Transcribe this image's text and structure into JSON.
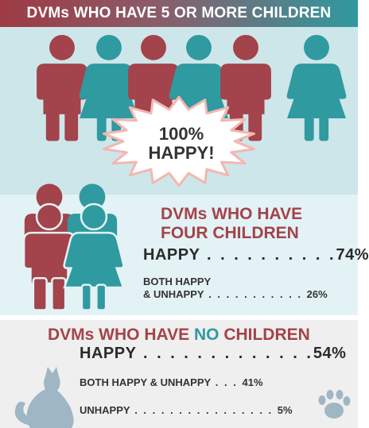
{
  "header": {
    "title": "DVMs WHO HAVE 5 OR MORE CHILDREN"
  },
  "section1": {
    "burst_line1": "100%",
    "burst_line2": "HAPPY!"
  },
  "section2": {
    "title_part1": "DVMs WHO HAVE",
    "title_part2": "FOUR CHILDREN",
    "happy_label": "HAPPY",
    "happy_value": "74%",
    "both_label_line1": "BOTH HAPPY",
    "both_label_line2": "& UNHAPPY",
    "both_value": "26%"
  },
  "section3": {
    "title_part1": "DVMs WHO HAVE",
    "title_part2": "NO",
    "title_part3": "CHILDREN",
    "happy_label": "HAPPY",
    "happy_value": "54%",
    "both_label": "BOTH HAPPY & UNHAPPY",
    "both_value": "41%",
    "unhappy_label": "UNHAPPY",
    "unhappy_value": "5%"
  },
  "colors": {
    "red": "#a3434b",
    "teal": "#2f9aa0",
    "bg1": "#cde6ea",
    "bg2": "#e3f2f5",
    "bg3": "#efefef"
  },
  "icons": [
    "person-male-icon",
    "person-female-icon",
    "starburst-icon",
    "cat-icon",
    "paw-print-icon"
  ]
}
